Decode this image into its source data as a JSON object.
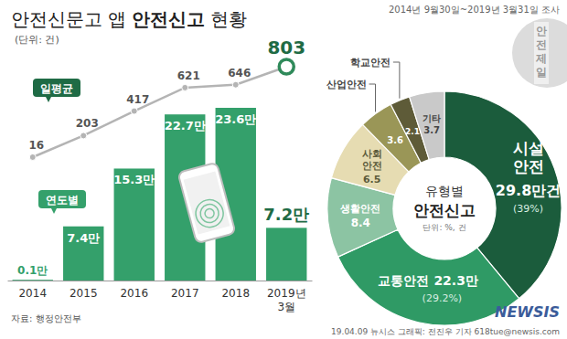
{
  "header": {
    "title_parts": [
      "안전신문고 앱",
      "안전신고",
      "현황"
    ],
    "unit": "(단위: 건)",
    "period": "2014년 9월30일~2019년 3월31일 조사",
    "badge": "안전제일"
  },
  "chart_data": [
    {
      "type": "bar",
      "categories": [
        "2014",
        "2015",
        "2016",
        "2017",
        "2018",
        "2019년 3월"
      ],
      "tick_labels": "x",
      "data_labels": true,
      "series": [
        {
          "name": "연도별",
          "type": "bar",
          "color": "#34a06b",
          "values": [
            0.1,
            7.4,
            15.3,
            22.7,
            23.6,
            7.2
          ],
          "value_labels": [
            "0.1만",
            "7.4만",
            "15.3만",
            "22.7만",
            "23.6만",
            "7.2만"
          ]
        },
        {
          "name": "일평균",
          "type": "line",
          "axis": "y2",
          "color": "#b4b4b4",
          "marker": "circle",
          "values": [
            16,
            203,
            417,
            621,
            646,
            803
          ]
        }
      ]
    },
    {
      "type": "pie",
      "title": "유형별",
      "subtitle": "안전신고",
      "unit_label": "단위: %, 건",
      "categories": [
        "시설안전",
        "교통안전",
        "생활안전",
        "사회안전",
        "산업안전",
        "학교안전",
        "기타"
      ],
      "values": [
        29.8,
        22.3,
        8.4,
        6.5,
        3.6,
        2.1,
        3.7
      ],
      "value_labels": [
        "29.8만건",
        "22.3만",
        "8.4",
        "6.5",
        "3.6",
        "2.1",
        "3.7"
      ],
      "percent_labels": [
        "(39%)",
        "(29.2%)",
        null,
        null,
        null,
        null,
        null
      ],
      "colors": [
        "#1b5c3c",
        "#2f9a65",
        "#8cc4a3",
        "#e6dcb2",
        "#9a9657",
        "#5e5b38",
        "#c9c9c9"
      ],
      "data_labels": true
    }
  ],
  "footer": {
    "source": "자료: 행정안전부",
    "credit": "19.04.09 뉴시스 그래픽: 전진우 기자 618tue@newsis.com",
    "logo": "NEWSIS"
  }
}
